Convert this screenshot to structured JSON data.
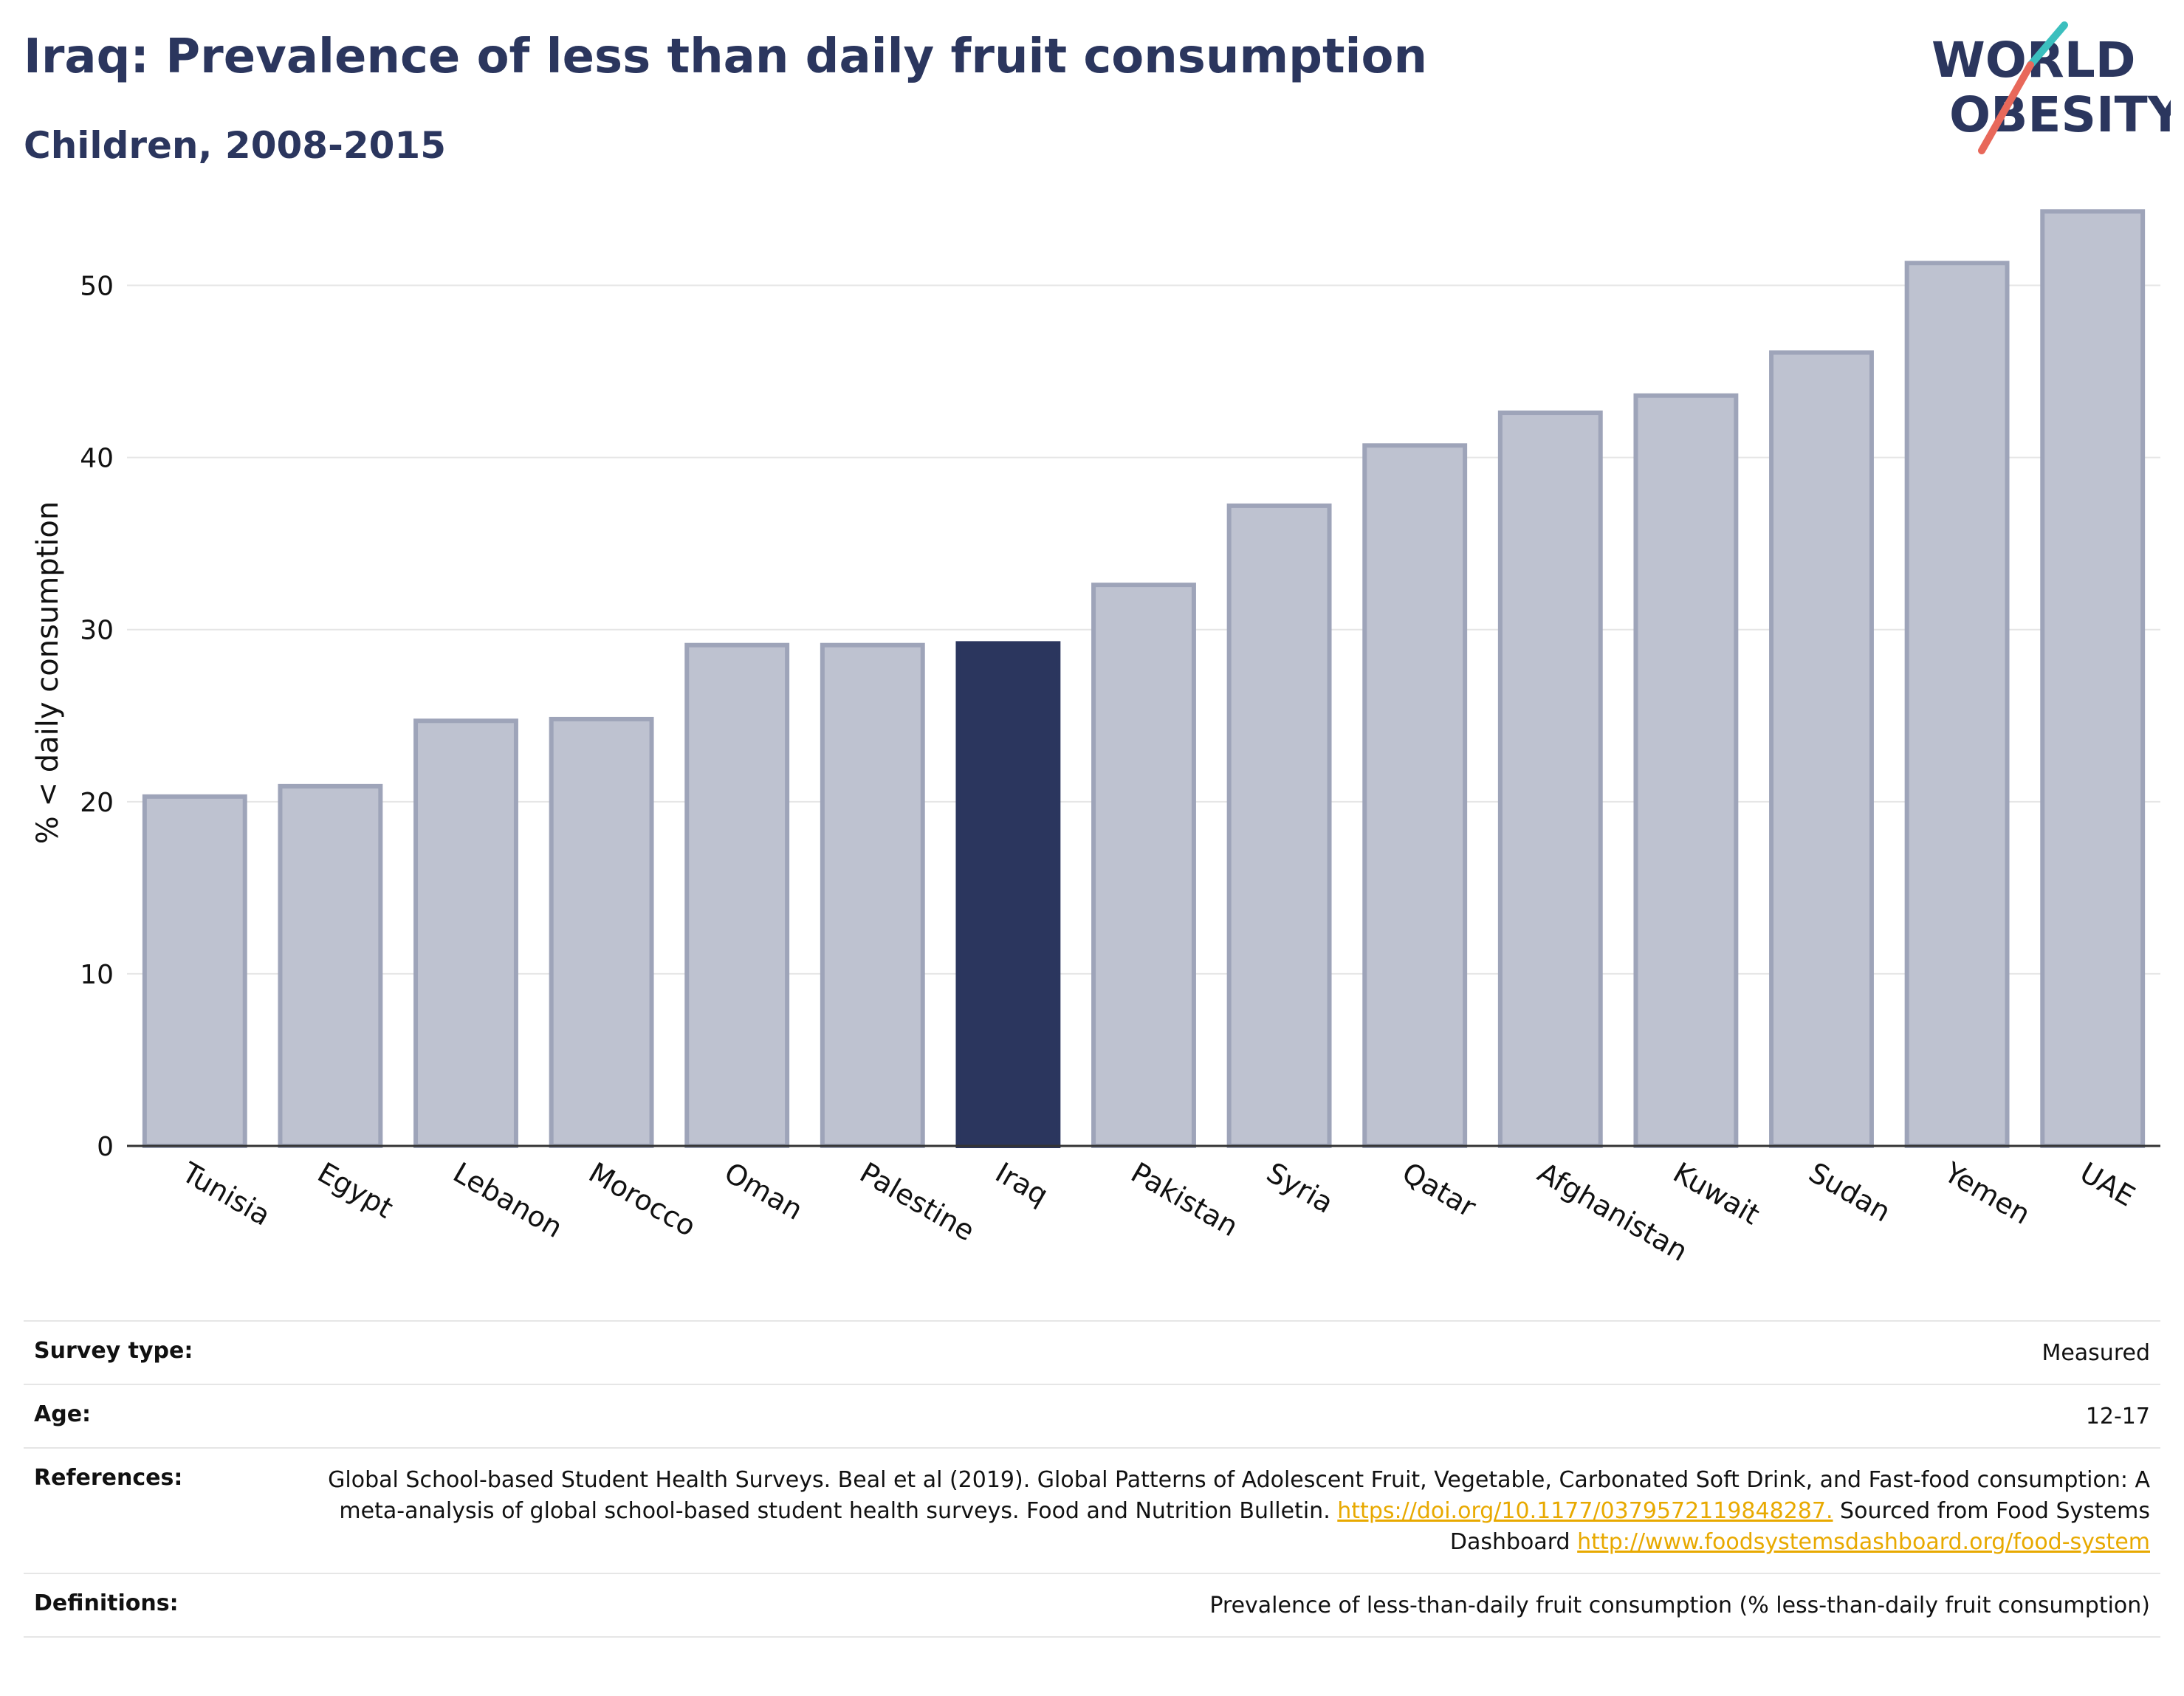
{
  "header": {
    "title": "Iraq: Prevalence of less than daily fruit consumption",
    "subtitle": "Children, 2008-2015",
    "logo_line1": "WORLD",
    "logo_line2": "OBESITY"
  },
  "colors": {
    "highlight": "#2b365e",
    "bar": "#bec2d0",
    "bar_border": "#9ea4b9",
    "title": "#2b365e",
    "link": "#e8a900",
    "logo_teal": "#3bbfbe",
    "logo_coral": "#e8685a"
  },
  "chart_data": {
    "type": "bar",
    "title": "Iraq: Prevalence of less than daily fruit consumption",
    "subtitle": "Children, 2008-2015",
    "xlabel": "",
    "ylabel": "% < daily consumption",
    "ylim": [
      0,
      55
    ],
    "yticks": [
      0,
      10,
      20,
      30,
      40,
      50
    ],
    "grid": true,
    "highlight": "Iraq",
    "categories": [
      "Tunisia",
      "Egypt",
      "Lebanon",
      "Morocco",
      "Oman",
      "Palestine",
      "Iraq",
      "Pakistan",
      "Syria",
      "Qatar",
      "Afghanistan",
      "Kuwait",
      "Sudan",
      "Yemen",
      "UAE"
    ],
    "values": [
      20.3,
      20.9,
      24.7,
      24.8,
      29.1,
      29.1,
      29.2,
      32.6,
      37.2,
      40.7,
      42.6,
      43.6,
      46.1,
      51.3,
      54.3
    ]
  },
  "info": {
    "survey_type_label": "Survey type:",
    "survey_type_value": "Measured",
    "age_label": "Age:",
    "age_value": "12-17",
    "references_label": "References:",
    "references_text1": "Global School-based Student Health Surveys. Beal et al (2019). Global Patterns of Adolescent Fruit, Vegetable, Carbonated Soft Drink, and Fast-food consumption: A meta-analysis of global school-based student health surveys. Food and Nutrition Bulletin.",
    "references_link1": "https://doi.org/10.1177/0379572119848287.",
    "references_text2": "Sourced from Food Systems Dashboard",
    "references_link2": "http://www.foodsystemsdashboard.org/food-system",
    "definitions_label": "Definitions:",
    "definitions_value": "Prevalence of less-than-daily fruit consumption (% less-than-daily fruit consumption)"
  }
}
